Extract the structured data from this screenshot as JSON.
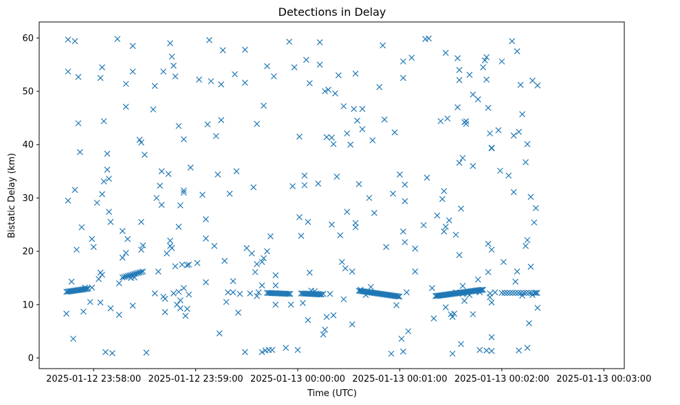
{
  "chart_data": {
    "type": "scatter",
    "title": "Detections in Delay",
    "xlabel": "Time (UTC)",
    "ylabel": "Bistatic Delay (km)",
    "marker": "x",
    "color": "#1f77b4",
    "grid": false,
    "legend": "none",
    "x_axis": {
      "type": "time",
      "range_s": [
        -32,
        312
      ],
      "ticks": [
        {
          "t": 0,
          "label": "2025-01-12 23:58:00"
        },
        {
          "t": 60,
          "label": "2025-01-12 23:59:00"
        },
        {
          "t": 120,
          "label": "2025-01-13 00:00:00"
        },
        {
          "t": 180,
          "label": "2025-01-13 00:01:00"
        },
        {
          "t": 240,
          "label": "2025-01-13 00:02:00"
        },
        {
          "t": 300,
          "label": "2025-01-13 00:03:00"
        }
      ]
    },
    "y_axis": {
      "range": [
        -2,
        63
      ],
      "ticks": [
        {
          "v": 0,
          "label": "0"
        },
        {
          "v": 10,
          "label": "10"
        },
        {
          "v": 20,
          "label": "20"
        },
        {
          "v": 30,
          "label": "30"
        },
        {
          "v": 40,
          "label": "40"
        },
        {
          "v": 50,
          "label": "50"
        },
        {
          "v": 60,
          "label": "60"
        }
      ]
    },
    "track_segments": [
      {
        "t0": -16,
        "t1": -3,
        "y0": 12.4,
        "y1": 13.0,
        "step": 0.75
      },
      {
        "t0": 17,
        "t1": 29,
        "y0": 15.1,
        "y1": 16.2,
        "step": 1.0
      },
      {
        "t0": 102,
        "t1": 116,
        "y0": 12.2,
        "y1": 12.0,
        "step": 0.8
      },
      {
        "t0": 122,
        "t1": 134,
        "y0": 12.1,
        "y1": 11.9,
        "step": 0.8
      },
      {
        "t0": 156,
        "t1": 180,
        "y0": 12.6,
        "y1": 11.5,
        "step": 0.7
      },
      {
        "t0": 201,
        "t1": 229,
        "y0": 11.6,
        "y1": 12.8,
        "step": 0.65
      },
      {
        "t0": 240,
        "t1": 262,
        "y0": 12.2,
        "y1": 12.2,
        "step": 1.6
      }
    ],
    "points": [
      [
        -16,
        8.3
      ],
      [
        -15,
        29.5
      ],
      [
        -15,
        53.7
      ],
      [
        -15,
        59.7
      ],
      [
        -13,
        14.3
      ],
      [
        -12,
        3.6
      ],
      [
        -11,
        59.4
      ],
      [
        -11,
        31.5
      ],
      [
        -10,
        20.3
      ],
      [
        -9,
        52.7
      ],
      [
        -9,
        44.0
      ],
      [
        -8,
        38.6
      ],
      [
        -7,
        24.5
      ],
      [
        -6,
        8.7
      ],
      [
        -5,
        13.2
      ],
      [
        -2,
        10.5
      ],
      [
        -1,
        13.2
      ],
      [
        -1,
        22.3
      ],
      [
        0,
        20.8
      ],
      [
        2,
        29.1
      ],
      [
        3,
        14.8
      ],
      [
        4,
        10.4
      ],
      [
        4,
        16.0
      ],
      [
        4,
        52.5
      ],
      [
        5,
        15.6
      ],
      [
        5,
        54.5
      ],
      [
        5,
        30.7
      ],
      [
        6,
        44.4
      ],
      [
        6,
        33.1
      ],
      [
        7,
        1.1
      ],
      [
        8,
        35.3
      ],
      [
        8,
        38.3
      ],
      [
        9,
        33.6
      ],
      [
        9,
        27.4
      ],
      [
        10,
        25.5
      ],
      [
        10,
        9.3
      ],
      [
        11,
        0.9
      ],
      [
        14,
        59.8
      ],
      [
        15,
        14.0
      ],
      [
        15,
        8.1
      ],
      [
        17,
        18.8
      ],
      [
        17,
        23.8
      ],
      [
        19,
        19.7
      ],
      [
        19,
        51.4
      ],
      [
        19,
        47.1
      ],
      [
        20,
        22.3
      ],
      [
        22,
        15.0
      ],
      [
        23,
        58.5
      ],
      [
        23,
        53.7
      ],
      [
        23,
        9.8
      ],
      [
        24,
        15.1
      ],
      [
        27,
        40.9
      ],
      [
        28,
        40.4
      ],
      [
        28,
        25.5
      ],
      [
        28,
        20.3
      ],
      [
        29,
        21.1
      ],
      [
        30,
        38.1
      ],
      [
        31,
        1.0
      ],
      [
        35,
        46.6
      ],
      [
        36,
        12.1
      ],
      [
        36,
        51.0
      ],
      [
        37,
        30.0
      ],
      [
        38,
        16.2
      ],
      [
        39,
        32.3
      ],
      [
        40,
        35.0
      ],
      [
        40,
        28.7
      ],
      [
        41,
        53.7
      ],
      [
        41,
        11.5
      ],
      [
        42,
        11.1
      ],
      [
        42,
        8.6
      ],
      [
        43,
        19.6
      ],
      [
        44,
        34.5
      ],
      [
        45,
        21.0
      ],
      [
        45,
        22.0
      ],
      [
        46,
        20.6
      ],
      [
        47,
        12.1
      ],
      [
        48,
        17.2
      ],
      [
        49,
        10.0
      ],
      [
        50,
        24.6
      ],
      [
        50,
        43.5
      ],
      [
        51,
        9.3
      ],
      [
        51,
        28.6
      ],
      [
        52,
        17.5
      ],
      [
        53,
        31.4
      ],
      [
        53,
        31.0
      ],
      [
        53,
        41.0
      ],
      [
        53,
        13.1
      ],
      [
        54,
        7.9
      ],
      [
        55,
        17.4
      ],
      [
        55,
        9.2
      ],
      [
        56,
        17.5
      ],
      [
        56,
        11.9
      ],
      [
        57,
        35.7
      ],
      [
        45,
        59.0
      ],
      [
        46,
        56.5
      ],
      [
        47,
        54.8
      ],
      [
        48,
        52.8
      ],
      [
        50,
        12.4
      ],
      [
        51,
        10.8
      ],
      [
        61,
        17.8
      ],
      [
        62,
        52.2
      ],
      [
        64,
        30.6
      ],
      [
        66,
        14.2
      ],
      [
        66,
        22.4
      ],
      [
        66,
        26.0
      ],
      [
        67,
        43.8
      ],
      [
        68,
        59.6
      ],
      [
        69,
        51.9
      ],
      [
        71,
        21.0
      ],
      [
        72,
        41.6
      ],
      [
        73,
        34.4
      ],
      [
        74,
        4.6
      ],
      [
        75,
        51.3
      ],
      [
        75,
        44.6
      ],
      [
        76,
        57.7
      ],
      [
        77,
        18.2
      ],
      [
        78,
        10.5
      ],
      [
        79,
        12.3
      ],
      [
        80,
        30.8
      ],
      [
        82,
        12.3
      ],
      [
        82,
        14.4
      ],
      [
        83,
        53.2
      ],
      [
        84,
        35.0
      ],
      [
        85,
        8.5
      ],
      [
        86,
        12.0
      ],
      [
        89,
        51.6
      ],
      [
        89,
        57.8
      ],
      [
        89,
        1.1
      ],
      [
        90,
        20.6
      ],
      [
        92,
        12.1
      ],
      [
        93,
        19.6
      ],
      [
        94,
        32.0
      ],
      [
        95,
        16.1
      ],
      [
        96,
        17.6
      ],
      [
        96,
        11.6
      ],
      [
        96,
        43.9
      ],
      [
        97,
        12.3
      ],
      [
        99,
        18.0
      ],
      [
        99,
        13.6
      ],
      [
        99,
        1.1
      ],
      [
        100,
        47.3
      ],
      [
        100,
        18.7
      ],
      [
        101,
        1.4
      ],
      [
        102,
        20.0
      ],
      [
        102,
        54.7
      ],
      [
        103,
        1.5
      ],
      [
        104,
        22.8
      ],
      [
        105,
        1.5
      ],
      [
        106,
        52.8
      ],
      [
        107,
        10.0
      ],
      [
        107,
        15.5
      ],
      [
        107,
        13.6
      ],
      [
        113,
        1.9
      ],
      [
        115,
        59.3
      ],
      [
        116,
        10.0
      ],
      [
        117,
        32.2
      ],
      [
        118,
        54.5
      ],
      [
        120,
        1.5
      ],
      [
        121,
        41.5
      ],
      [
        121,
        26.4
      ],
      [
        122,
        22.9
      ],
      [
        123,
        10.3
      ],
      [
        124,
        32.4
      ],
      [
        124,
        34.2
      ],
      [
        125,
        55.9
      ],
      [
        126,
        25.5
      ],
      [
        126,
        7.1
      ],
      [
        127,
        16.0
      ],
      [
        127,
        51.5
      ],
      [
        128,
        12.6
      ],
      [
        130,
        12.5
      ],
      [
        131,
        12.1
      ],
      [
        132,
        32.7
      ],
      [
        133,
        55.0
      ],
      [
        133,
        59.2
      ],
      [
        135,
        4.4
      ],
      [
        135,
        12.0
      ],
      [
        136,
        5.3
      ],
      [
        136,
        50.0
      ],
      [
        137,
        41.4
      ],
      [
        137,
        7.7
      ],
      [
        138,
        50.3
      ],
      [
        139,
        12.0
      ],
      [
        140,
        25.0
      ],
      [
        140,
        41.3
      ],
      [
        141,
        40.1
      ],
      [
        141,
        8.0
      ],
      [
        142,
        49.6
      ],
      [
        143,
        34.0
      ],
      [
        144,
        53.0
      ],
      [
        145,
        23.0
      ],
      [
        146,
        18.0
      ],
      [
        147,
        47.2
      ],
      [
        147,
        11.0
      ],
      [
        148,
        16.8
      ],
      [
        149,
        42.1
      ],
      [
        149,
        27.4
      ],
      [
        151,
        40.0
      ],
      [
        152,
        6.3
      ],
      [
        152,
        16.2
      ],
      [
        153,
        46.7
      ],
      [
        154,
        25.3
      ],
      [
        154,
        24.5
      ],
      [
        154,
        53.3
      ],
      [
        155,
        44.5
      ],
      [
        156,
        32.6
      ],
      [
        157,
        12.8
      ],
      [
        158,
        46.7
      ],
      [
        158,
        42.9
      ],
      [
        160,
        11.8
      ],
      [
        162,
        30.0
      ],
      [
        163,
        13.3
      ],
      [
        164,
        40.8
      ],
      [
        165,
        27.2
      ],
      [
        168,
        50.8
      ],
      [
        170,
        58.6
      ],
      [
        171,
        44.7
      ],
      [
        172,
        20.8
      ],
      [
        175,
        0.8
      ],
      [
        176,
        30.8
      ],
      [
        177,
        42.3
      ],
      [
        178,
        9.9
      ],
      [
        180,
        34.4
      ],
      [
        181,
        3.6
      ],
      [
        182,
        55.6
      ],
      [
        182,
        52.5
      ],
      [
        182,
        23.7
      ],
      [
        182,
        1.2
      ],
      [
        183,
        29.4
      ],
      [
        183,
        32.5
      ],
      [
        183,
        21.7
      ],
      [
        184,
        12.3
      ],
      [
        185,
        5.0
      ],
      [
        187,
        56.3
      ],
      [
        189,
        20.5
      ],
      [
        189,
        16.2
      ],
      [
        194,
        24.9
      ],
      [
        195,
        59.8
      ],
      [
        196,
        33.8
      ],
      [
        197,
        59.9
      ],
      [
        199,
        13.1
      ],
      [
        200,
        7.4
      ],
      [
        202,
        26.7
      ],
      [
        204,
        44.4
      ],
      [
        205,
        29.8
      ],
      [
        206,
        31.3
      ],
      [
        206,
        23.7
      ],
      [
        207,
        9.5
      ],
      [
        207,
        57.2
      ],
      [
        207,
        24.6
      ],
      [
        208,
        44.9
      ],
      [
        209,
        25.8
      ],
      [
        210,
        8.2
      ],
      [
        211,
        7.7
      ],
      [
        211,
        0.8
      ],
      [
        212,
        8.3
      ],
      [
        213,
        12.3
      ],
      [
        213,
        23.1
      ],
      [
        214,
        47.0
      ],
      [
        214,
        56.2
      ],
      [
        215,
        52.1
      ],
      [
        215,
        54.0
      ],
      [
        215,
        36.6
      ],
      [
        215,
        19.3
      ],
      [
        216,
        2.6
      ],
      [
        216,
        28.0
      ],
      [
        217,
        12.0
      ],
      [
        217,
        37.5
      ],
      [
        217,
        13.5
      ],
      [
        218,
        10.7
      ],
      [
        218,
        44.2
      ],
      [
        219,
        43.9
      ],
      [
        219,
        44.4
      ],
      [
        220,
        12.1
      ],
      [
        221,
        53.1
      ],
      [
        221,
        11.8
      ],
      [
        223,
        49.4
      ],
      [
        223,
        36.0
      ],
      [
        223,
        8.2
      ],
      [
        224,
        12.5
      ],
      [
        226,
        14.7
      ],
      [
        226,
        48.5
      ],
      [
        227,
        1.5
      ],
      [
        227,
        12.3
      ],
      [
        229,
        54.5
      ],
      [
        230,
        55.8
      ],
      [
        231,
        1.4
      ],
      [
        231,
        56.4
      ],
      [
        231,
        52.2
      ],
      [
        232,
        46.9
      ],
      [
        232,
        21.4
      ],
      [
        232,
        16.1
      ],
      [
        233,
        12.1
      ],
      [
        233,
        11.4
      ],
      [
        233,
        42.1
      ],
      [
        234,
        39.3
      ],
      [
        234,
        39.4
      ],
      [
        234,
        20.3
      ],
      [
        234,
        10.4
      ],
      [
        234,
        3.9
      ],
      [
        234,
        1.3
      ],
      [
        236,
        12.3
      ],
      [
        238,
        42.7
      ],
      [
        239,
        35.1
      ],
      [
        240,
        55.6
      ],
      [
        241,
        18.0
      ],
      [
        244,
        34.2
      ],
      [
        246,
        59.4
      ],
      [
        247,
        31.1
      ],
      [
        247,
        41.7
      ],
      [
        248,
        14.3
      ],
      [
        249,
        57.5
      ],
      [
        249,
        16.2
      ],
      [
        250,
        42.4
      ],
      [
        250,
        1.4
      ],
      [
        251,
        51.2
      ],
      [
        252,
        45.7
      ],
      [
        252,
        11.7
      ],
      [
        254,
        36.7
      ],
      [
        254,
        21.0
      ],
      [
        255,
        1.9
      ],
      [
        255,
        40.1
      ],
      [
        255,
        22.1
      ],
      [
        256,
        6.5
      ],
      [
        257,
        30.2
      ],
      [
        257,
        17.1
      ],
      [
        258,
        11.8
      ],
      [
        258,
        52.0
      ],
      [
        259,
        25.4
      ],
      [
        260,
        28.1
      ],
      [
        260,
        12.2
      ],
      [
        261,
        9.4
      ],
      [
        261,
        51.1
      ]
    ]
  }
}
